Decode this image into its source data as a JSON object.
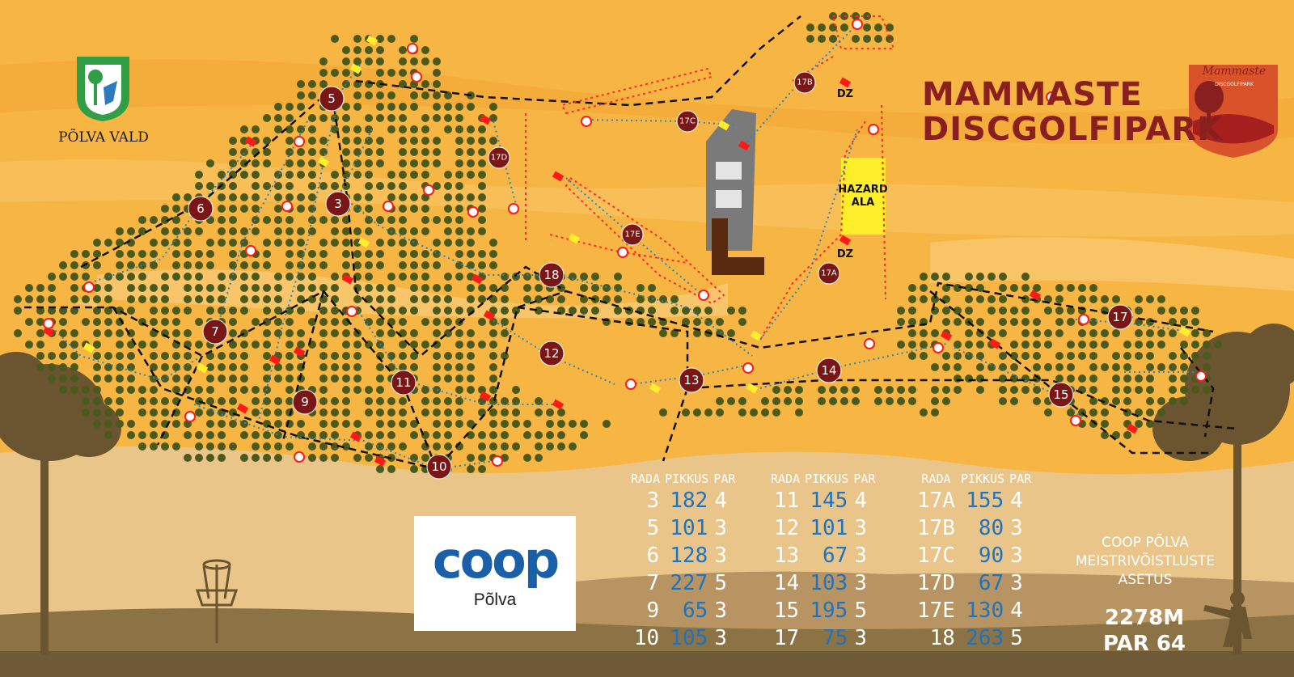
{
  "branding": {
    "title_line1": "MAMMASTE",
    "title_line2": "DISCGOLFIPARK",
    "logo_text": "Mammaste",
    "logo_sub": "DISCGOLFIPARK",
    "municipality": "PÕLVA VALD",
    "colors": {
      "title": "#8a1f1f",
      "background": "#f7b544",
      "tree": "#4b5a1c",
      "hole_marker": "#7a1616",
      "fairway": "#2a86c4",
      "boundary": "#ff2a2a",
      "path": "#111111"
    }
  },
  "sponsor": {
    "name": "coop",
    "location": "Põlva"
  },
  "map": {
    "hole_markers": [
      "3",
      "5",
      "6",
      "7",
      "9",
      "10",
      "11",
      "12",
      "13",
      "14",
      "15",
      "17",
      "18",
      "17A",
      "17B",
      "17C",
      "17D",
      "17E"
    ],
    "labels": {
      "dz": "DZ",
      "hazard_line1": "HAZARD",
      "hazard_line2": "ALA"
    },
    "icons": [
      "discgolf-basket-icon",
      "disc-thrower-silhouette",
      "tree-silhouette"
    ]
  },
  "table": {
    "headers": {
      "rada": "RADA",
      "pikkus": "PIKKUS",
      "par": "PAR"
    },
    "groups": [
      [
        {
          "rada": "3",
          "pikkus": "182",
          "par": "4"
        },
        {
          "rada": "5",
          "pikkus": "101",
          "par": "3"
        },
        {
          "rada": "6",
          "pikkus": "128",
          "par": "3"
        },
        {
          "rada": "7",
          "pikkus": "227",
          "par": "5"
        },
        {
          "rada": "9",
          "pikkus": "65",
          "par": "3"
        },
        {
          "rada": "10",
          "pikkus": "105",
          "par": "3"
        }
      ],
      [
        {
          "rada": "11",
          "pikkus": "145",
          "par": "4"
        },
        {
          "rada": "12",
          "pikkus": "101",
          "par": "3"
        },
        {
          "rada": "13",
          "pikkus": "67",
          "par": "3"
        },
        {
          "rada": "14",
          "pikkus": "103",
          "par": "3"
        },
        {
          "rada": "15",
          "pikkus": "195",
          "par": "5"
        },
        {
          "rada": "17",
          "pikkus": "75",
          "par": "3"
        }
      ],
      [
        {
          "rada": "17A",
          "pikkus": "155",
          "par": "4"
        },
        {
          "rada": "17B",
          "pikkus": "80",
          "par": "3"
        },
        {
          "rada": "17C",
          "pikkus": "90",
          "par": "3"
        },
        {
          "rada": "17D",
          "pikkus": "67",
          "par": "3"
        },
        {
          "rada": "17E",
          "pikkus": "130",
          "par": "4"
        },
        {
          "rada": "18",
          "pikkus": "263",
          "par": "5"
        }
      ]
    ]
  },
  "footer": {
    "note_line1": "COOP PÕLVA",
    "note_line2": "MEISTRIVÕISTLUSTE",
    "note_line3": "ASETUS",
    "total_distance": "2278M",
    "total_par": "PAR 64"
  }
}
